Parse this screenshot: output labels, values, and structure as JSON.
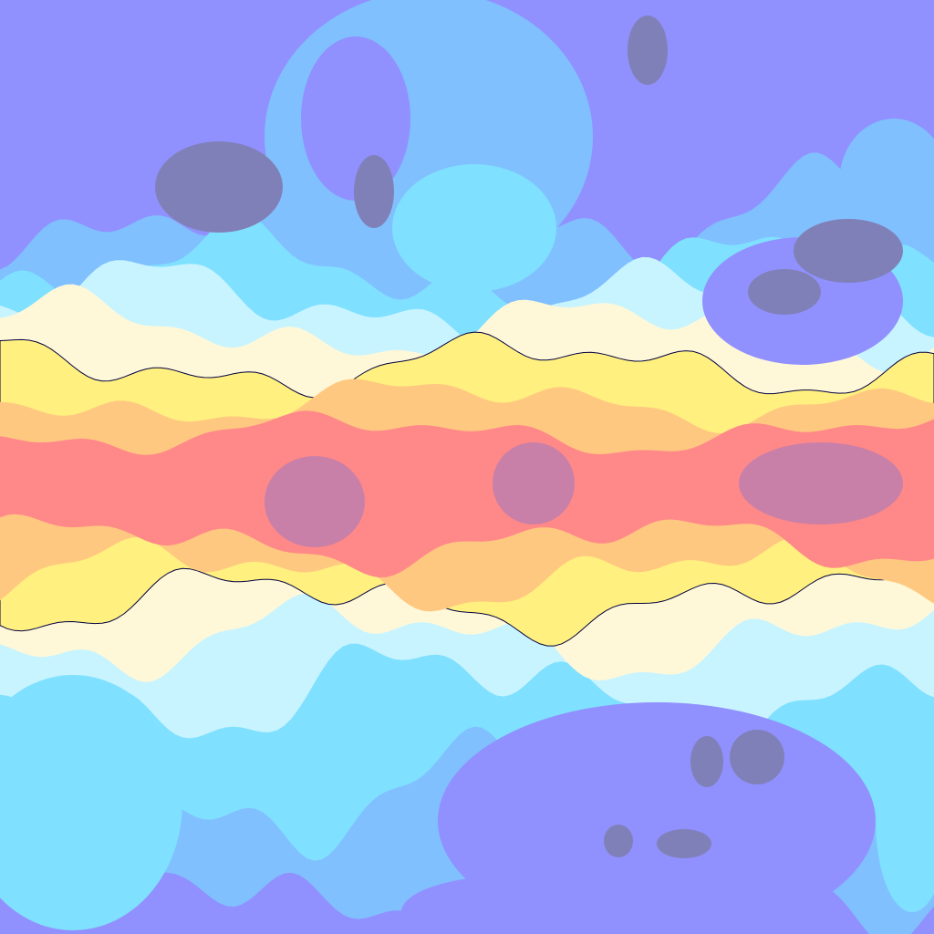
{
  "map": {
    "type": "filled-contour field",
    "palette": {
      "level_1": "#9090ff",
      "level_0": "#8080b8",
      "level_2": "#80c0ff",
      "level_3": "#80e0ff",
      "level_4": "#c8f4ff",
      "level_5": "#fff8d8",
      "level_6": "#fff080",
      "level_7": "#ffc880",
      "level_8": "#ff8888",
      "level_9": "#c880a8",
      "contour_line": "#000040"
    }
  }
}
